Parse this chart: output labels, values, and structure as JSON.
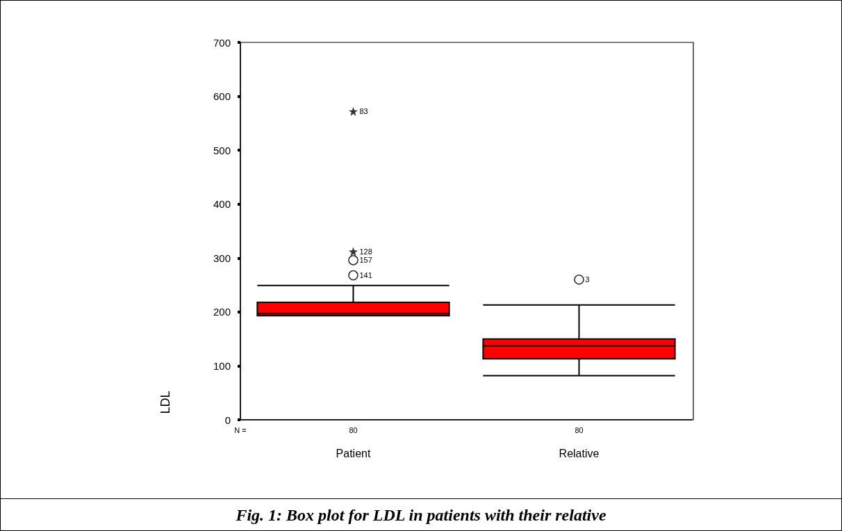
{
  "chart_data": {
    "type": "box",
    "title": "Fig. 1: Box plot for LDL in patients with their relative",
    "ylabel": "LDL",
    "categories": [
      "Patient",
      "Relative"
    ],
    "boxes": [
      {
        "low": 193,
        "q1": 193,
        "median": 197,
        "q3": 218,
        "high": 249
      },
      {
        "low": 82,
        "q1": 113,
        "median": 137,
        "q3": 150,
        "high": 213
      }
    ],
    "color": "#ff0000",
    "series": [
      {
        "type": "scatter",
        "marker": "circle",
        "color": "#000000",
        "x": [
          "Patient",
          "Patient",
          "Relative"
        ],
        "values": [
          268,
          296,
          260
        ]
      },
      {
        "type": "scatter",
        "marker": "star",
        "color": "#000000",
        "x": [
          "Patient",
          "Patient"
        ],
        "values": [
          312,
          572
        ]
      }
    ],
    "ylim": [
      0,
      700
    ],
    "yticks": [
      0,
      100,
      200,
      300,
      400,
      500,
      600,
      700
    ],
    "grid": false,
    "annotations": [
      "N =",
      "80",
      "80",
      {
        "text": "141",
        "x": "Patient",
        "y": 268
      },
      {
        "text": "157",
        "x": "Patient",
        "y": 296
      },
      {
        "text": "128",
        "x": "Patient",
        "y": 312
      },
      {
        "text": "83",
        "x": "Patient",
        "y": 572
      },
      {
        "text": "3",
        "x": "Relative",
        "y": 260
      }
    ]
  }
}
